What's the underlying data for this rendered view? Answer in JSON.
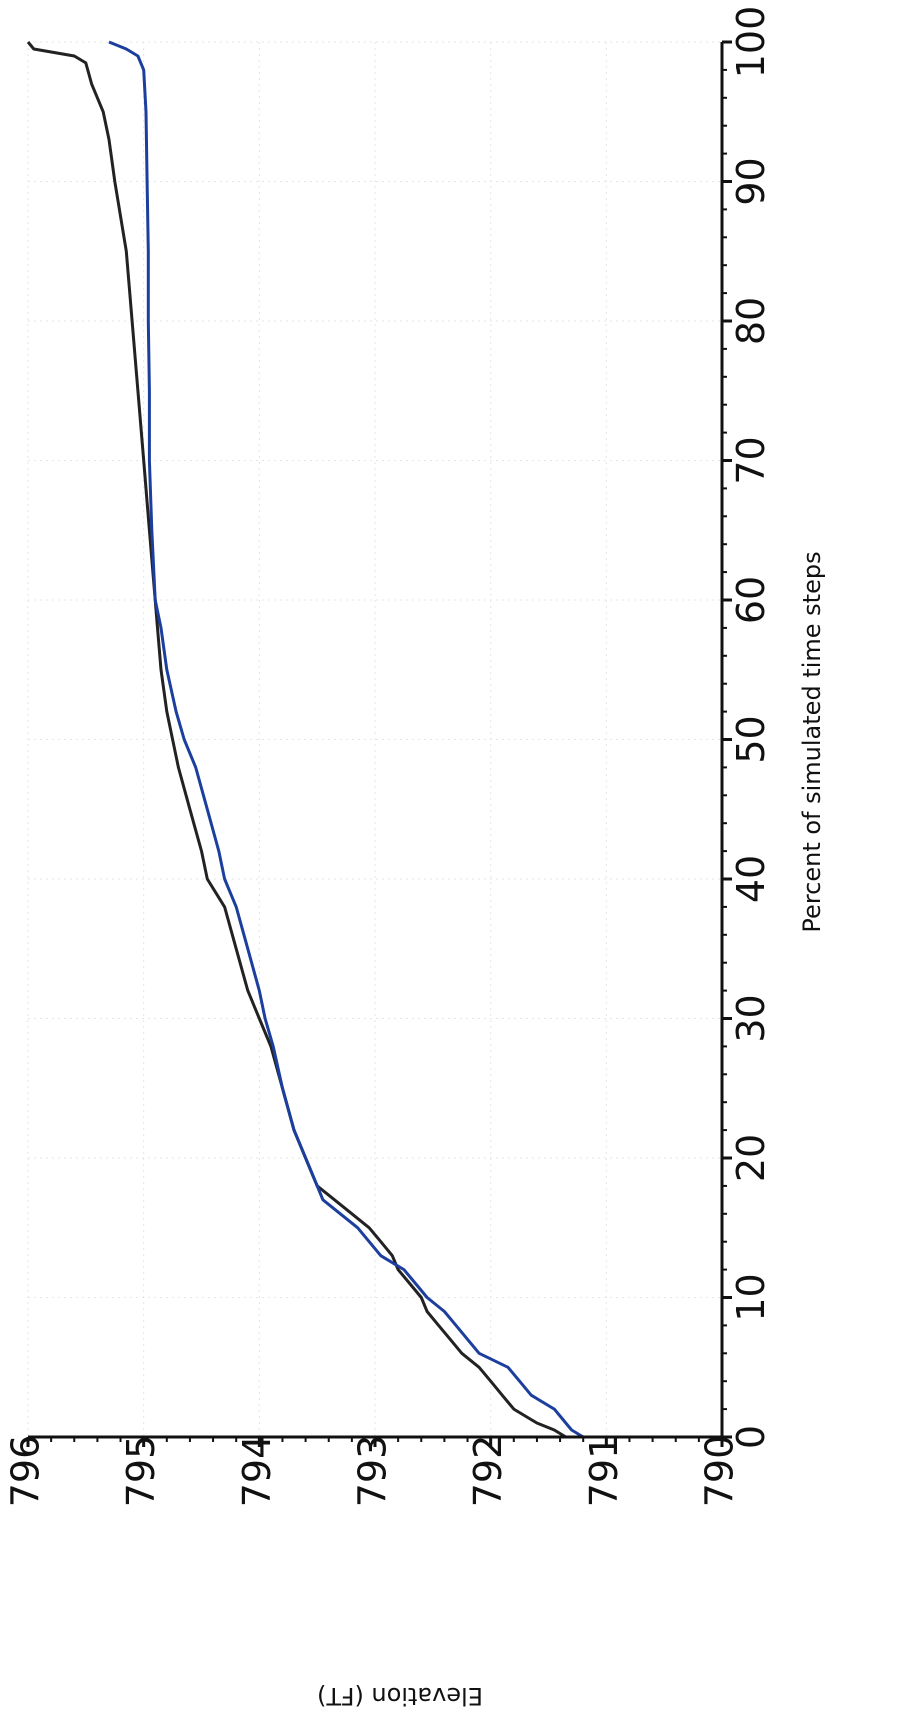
{
  "chart_data": {
    "type": "line",
    "title": "",
    "xlabel": "Percent of simulated time steps",
    "ylabel": "Elevation (FT)",
    "xlim": [
      0,
      100
    ],
    "ylim": [
      790,
      796
    ],
    "x_ticks": [
      0,
      10,
      20,
      30,
      40,
      50,
      60,
      70,
      80,
      90,
      100
    ],
    "y_ticks": [
      790,
      791,
      792,
      793,
      794,
      795,
      796
    ],
    "grid": true,
    "legend": "none",
    "orientation": "rotated-90-clockwise",
    "series": [
      {
        "color": "#222222",
        "points": [
          [
            0,
            791.35
          ],
          [
            0.5,
            791.45
          ],
          [
            1,
            791.6
          ],
          [
            1.5,
            791.7
          ],
          [
            2,
            791.8
          ],
          [
            3,
            791.9
          ],
          [
            4,
            792.0
          ],
          [
            5,
            792.1
          ],
          [
            6,
            792.25
          ],
          [
            7,
            792.35
          ],
          [
            8,
            792.45
          ],
          [
            9,
            792.55
          ],
          [
            10,
            792.6
          ],
          [
            11,
            792.7
          ],
          [
            12,
            792.8
          ],
          [
            13,
            792.85
          ],
          [
            14,
            792.95
          ],
          [
            15,
            793.05
          ],
          [
            16,
            793.2
          ],
          [
            17,
            793.35
          ],
          [
            18,
            793.5
          ],
          [
            19,
            793.55
          ],
          [
            20,
            793.6
          ],
          [
            22,
            793.7
          ],
          [
            25,
            793.8
          ],
          [
            28,
            793.9
          ],
          [
            30,
            794.0
          ],
          [
            32,
            794.1
          ],
          [
            35,
            794.2
          ],
          [
            38,
            794.3
          ],
          [
            40,
            794.45
          ],
          [
            42,
            794.5
          ],
          [
            45,
            794.6
          ],
          [
            48,
            794.7
          ],
          [
            50,
            794.75
          ],
          [
            52,
            794.8
          ],
          [
            55,
            794.85
          ],
          [
            58,
            794.88
          ],
          [
            60,
            794.9
          ],
          [
            65,
            794.95
          ],
          [
            70,
            795.0
          ],
          [
            75,
            795.05
          ],
          [
            80,
            795.1
          ],
          [
            85,
            795.15
          ],
          [
            90,
            795.25
          ],
          [
            93,
            795.3
          ],
          [
            95,
            795.35
          ],
          [
            97,
            795.45
          ],
          [
            98.5,
            795.5
          ],
          [
            99,
            795.6
          ],
          [
            99.5,
            795.95
          ],
          [
            100,
            796.0
          ]
        ]
      },
      {
        "color": "#1c3f9e",
        "points": [
          [
            0,
            791.2
          ],
          [
            0.5,
            791.3
          ],
          [
            1,
            791.35
          ],
          [
            2,
            791.45
          ],
          [
            3,
            791.65
          ],
          [
            4,
            791.75
          ],
          [
            5,
            791.85
          ],
          [
            6,
            792.1
          ],
          [
            7,
            792.2
          ],
          [
            8,
            792.3
          ],
          [
            9,
            792.4
          ],
          [
            10,
            792.55
          ],
          [
            11,
            792.65
          ],
          [
            12,
            792.75
          ],
          [
            13,
            792.95
          ],
          [
            14,
            793.05
          ],
          [
            15,
            793.15
          ],
          [
            16,
            793.3
          ],
          [
            17,
            793.45
          ],
          [
            18,
            793.5
          ],
          [
            20,
            793.6
          ],
          [
            22,
            793.7
          ],
          [
            25,
            793.8
          ],
          [
            28,
            793.88
          ],
          [
            30,
            793.95
          ],
          [
            32,
            794.0
          ],
          [
            35,
            794.1
          ],
          [
            38,
            794.2
          ],
          [
            40,
            794.3
          ],
          [
            42,
            794.35
          ],
          [
            45,
            794.45
          ],
          [
            48,
            794.55
          ],
          [
            50,
            794.65
          ],
          [
            52,
            794.72
          ],
          [
            55,
            794.8
          ],
          [
            58,
            794.85
          ],
          [
            60,
            794.9
          ],
          [
            65,
            794.93
          ],
          [
            70,
            794.95
          ],
          [
            75,
            794.95
          ],
          [
            80,
            794.96
          ],
          [
            85,
            794.96
          ],
          [
            90,
            794.97
          ],
          [
            95,
            794.98
          ],
          [
            98,
            795.0
          ],
          [
            99,
            795.05
          ],
          [
            99.5,
            795.15
          ],
          [
            100,
            795.3
          ]
        ]
      }
    ]
  }
}
